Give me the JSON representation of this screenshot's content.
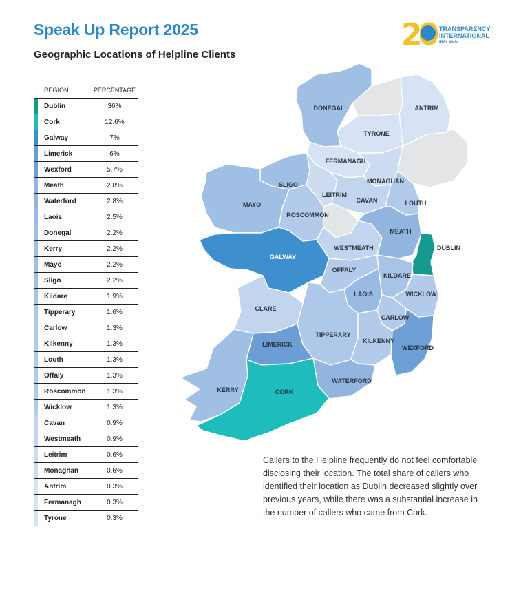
{
  "header": {
    "title": "Speak Up Report 2025",
    "subtitle": "Geographic Locations of Helpline Clients"
  },
  "logo": {
    "number": "20",
    "line1": "TRANSPARENCY",
    "line2": "INTERNATIONAL",
    "line3": "IRELAND"
  },
  "legend": {
    "col_region": "REGION",
    "col_percentage": "PERCENTAGE",
    "rows": [
      {
        "region": "Dublin",
        "percentage": "36%",
        "color": "#159a8f"
      },
      {
        "region": "Cork",
        "percentage": "12.6%",
        "color": "#1ebcbc"
      },
      {
        "region": "Galway",
        "percentage": "7%",
        "color": "#3d8fcd"
      },
      {
        "region": "Limerick",
        "percentage": "6%",
        "color": "#6a9ed4"
      },
      {
        "region": "Wexford",
        "percentage": "5.7%",
        "color": "#6da1d6"
      },
      {
        "region": "Meath",
        "percentage": "2.8%",
        "color": "#92b5e0"
      },
      {
        "region": "Waterford",
        "percentage": "2.8%",
        "color": "#92b5e0"
      },
      {
        "region": "Laois",
        "percentage": "2.5%",
        "color": "#99bae2"
      },
      {
        "region": "Donegal",
        "percentage": "2.2%",
        "color": "#a0bfe4"
      },
      {
        "region": "Kerry",
        "percentage": "2.2%",
        "color": "#a0bfe4"
      },
      {
        "region": "Mayo",
        "percentage": "2.2%",
        "color": "#a0bfe4"
      },
      {
        "region": "Sligo",
        "percentage": "2.2%",
        "color": "#a0bfe4"
      },
      {
        "region": "Kildare",
        "percentage": "1.9%",
        "color": "#a7c4e6"
      },
      {
        "region": "Tipperary",
        "percentage": "1.6%",
        "color": "#adc8e8"
      },
      {
        "region": "Carlow",
        "percentage": "1.3%",
        "color": "#b2cbea"
      },
      {
        "region": "Kilkenny",
        "percentage": "1.3%",
        "color": "#b2cbea"
      },
      {
        "region": "Louth",
        "percentage": "1.3%",
        "color": "#b2cbea"
      },
      {
        "region": "Offaly",
        "percentage": "1.3%",
        "color": "#b2cbea"
      },
      {
        "region": "Roscommon",
        "percentage": "1.3%",
        "color": "#b2cbea"
      },
      {
        "region": "Wicklow",
        "percentage": "1.3%",
        "color": "#b2cbea"
      },
      {
        "region": "Cavan",
        "percentage": "0.9%",
        "color": "#c2d5ee"
      },
      {
        "region": "Westmeath",
        "percentage": "0.9%",
        "color": "#c2d5ee"
      },
      {
        "region": "Leitrim",
        "percentage": "0.6%",
        "color": "#cddcf1"
      },
      {
        "region": "Monaghan",
        "percentage": "0.6%",
        "color": "#cddcf1"
      },
      {
        "region": "Antrim",
        "percentage": "0.3%",
        "color": "#d7e3f4"
      },
      {
        "region": "Fermanagh",
        "percentage": "0.3%",
        "color": "#d7e3f4"
      },
      {
        "region": "Tyrone",
        "percentage": "0.3%",
        "color": "#d7e3f4"
      }
    ]
  },
  "map_labels": {
    "donegal": "DONEGAL",
    "antrim": "ANTRIM",
    "tyrone": "TYRONE",
    "fermanagh": "FERMANAGH",
    "sligo": "SLIGO",
    "mayo": "MAYO",
    "leitrim": "LEITRIM",
    "monaghan": "MONAGHAN",
    "cavan": "CAVAN",
    "louth": "LOUTH",
    "roscommon": "ROSCOMMON",
    "meath": "MEATH",
    "westmeath": "WESTMEATH",
    "dublin": "DUBLIN",
    "galway": "GALWAY",
    "offaly": "OFFALY",
    "kildare": "KILDARE",
    "laois": "LAOIS",
    "wicklow": "WICKLOW",
    "clare": "CLARE",
    "carlow": "CARLOW",
    "tipperary": "TIPPERARY",
    "kilkenny": "KILKENNY",
    "limerick": "LIMERICK",
    "wexford": "WEXFORD",
    "kerry": "KERRY",
    "cork": "CORK",
    "waterford": "WATERFORD"
  },
  "map_colors": {
    "no_data": "#e3e5e7",
    "border": "#ffffff"
  },
  "note": "Callers to the Helpline frequently do not feel comfortable disclosing their location. The total share of callers who identified their location as Dublin decreased slightly over previous years, while there was a substantial increase in the number of callers who came from Cork."
}
